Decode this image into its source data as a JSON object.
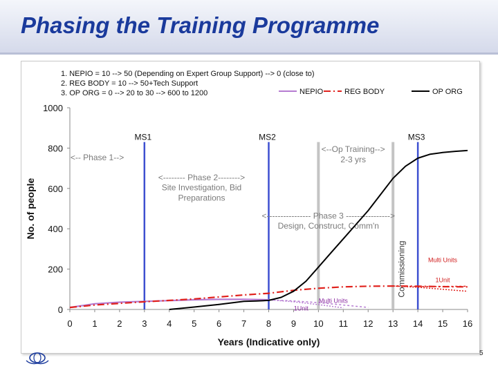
{
  "slide": {
    "title": "Phasing the Training Programme",
    "page_number": "5"
  },
  "colors": {
    "title": "#1a3a9c",
    "nepio": "#b57bd1",
    "reg_body": "#e0201b",
    "op_org": "#000000",
    "milestone": "#3d4fd0",
    "grey_marker": "#c4c4c4",
    "annot_text": "#7a7a7a",
    "multi_units_red": "#d01c1c",
    "multi_units_purple": "#8a2aa0"
  },
  "chart_data": {
    "type": "line",
    "title": "",
    "xlabel": "Years (Indicative only)",
    "ylabel": "No. of people",
    "xlim": [
      0,
      16
    ],
    "ylim": [
      0,
      1000
    ],
    "xticks": [
      "0",
      "1",
      "2",
      "3",
      "4",
      "5",
      "6",
      "7",
      "8",
      "9",
      "10",
      "11",
      "12",
      "13",
      "14",
      "15",
      "16"
    ],
    "yticks": [
      "0",
      "200",
      "400",
      "600",
      "800",
      "1000"
    ],
    "notes": [
      "1. NEPIO = 10 --> 50 (Depending on Expert Group Support) --> 0 (close to)",
      "2. REG BODY = 10 --> 50+Tech Support",
      "3. OP ORG = 0 --> 20 to 30 --> 600 to 1200"
    ],
    "legend": [
      "NEPIO",
      "REG BODY",
      "OP ORG"
    ],
    "series": [
      {
        "name": "NEPIO",
        "style": "solid",
        "x": [
          0,
          1,
          2,
          3,
          4,
          5,
          6,
          7,
          8
        ],
        "y": [
          10,
          28,
          36,
          40,
          44,
          48,
          50,
          50,
          48
        ]
      },
      {
        "name": "REG BODY",
        "style": "dashdot",
        "x": [
          0,
          1,
          2,
          3,
          4,
          5,
          6,
          7,
          8,
          9,
          10,
          11,
          12,
          13,
          14,
          15,
          16
        ],
        "y": [
          10,
          22,
          30,
          38,
          45,
          52,
          62,
          72,
          80,
          95,
          105,
          112,
          115,
          116,
          115,
          113,
          112
        ]
      },
      {
        "name": "OP ORG",
        "style": "solid",
        "x": [
          4,
          5,
          6,
          7,
          7.5,
          8,
          8.5,
          9,
          9.5,
          10,
          10.5,
          11,
          11.5,
          12,
          12.5,
          13,
          13.5,
          14,
          14.5,
          15,
          15.5,
          16
        ],
        "y": [
          0,
          12,
          25,
          40,
          42,
          45,
          60,
          90,
          140,
          210,
          280,
          350,
          420,
          490,
          570,
          650,
          710,
          750,
          770,
          778,
          784,
          788
        ]
      }
    ],
    "extra_lines": [
      {
        "name": "NEPIO 1Unit",
        "x": [
          8,
          9,
          10,
          11
        ],
        "y": [
          48,
          38,
          24,
          8
        ]
      },
      {
        "name": "NEPIO Multi Units",
        "x": [
          8,
          9,
          10,
          11,
          12
        ],
        "y": [
          48,
          42,
          34,
          22,
          10
        ]
      },
      {
        "name": "REG BODY 1Unit",
        "x": [
          13,
          14,
          15,
          16
        ],
        "y": [
          116,
          110,
          100,
          90
        ]
      },
      {
        "name": "REG BODY Multi Units",
        "x": [
          13,
          14,
          15,
          16
        ],
        "y": [
          116,
          114,
          114,
          115
        ]
      }
    ],
    "milestones": [
      {
        "label": "MS1",
        "x": 3
      },
      {
        "label": "MS2",
        "x": 8
      },
      {
        "label": "MS3",
        "x": 14
      }
    ],
    "grey_markers": [
      10,
      13
    ],
    "annotations": [
      {
        "id": "phase1",
        "text": "<-- Phase 1-->",
        "x": 1.1,
        "y": 740,
        "anchor": "middle"
      },
      {
        "id": "phase2a",
        "text": "<-------- Phase 2-------->",
        "x": 5.3,
        "y": 640,
        "anchor": "middle"
      },
      {
        "id": "phase2b",
        "text": "Site Investigation, Bid",
        "x": 5.3,
        "y": 590,
        "anchor": "middle"
      },
      {
        "id": "phase2c",
        "text": "Preparations",
        "x": 5.3,
        "y": 540,
        "anchor": "middle"
      },
      {
        "id": "optr1",
        "text": "<--Op Training-->",
        "x": 11.4,
        "y": 780,
        "anchor": "middle"
      },
      {
        "id": "optr2",
        "text": "2-3 yrs",
        "x": 11.4,
        "y": 730,
        "anchor": "middle"
      },
      {
        "id": "phase3a",
        "text": "<---------------- Phase 3 ---------------->",
        "x": 10.4,
        "y": 450,
        "anchor": "middle"
      },
      {
        "id": "phase3b",
        "text": "Design, Construct, Comm'n",
        "x": 10.4,
        "y": 400,
        "anchor": "middle"
      }
    ],
    "commissioning_label": "Commissioning",
    "small_labels": [
      {
        "id": "mu_red",
        "text": "Multi Units",
        "x": 15,
        "y": 235,
        "color": "multi_units_red",
        "size": 9
      },
      {
        "id": "u1_red",
        "text": "1Unit",
        "x": 15,
        "y": 135,
        "color": "multi_units_red",
        "size": 9
      },
      {
        "id": "mu_purple",
        "text": "Multi Units",
        "x": 10.6,
        "y": 32,
        "color": "multi_units_purple",
        "size": 9
      },
      {
        "id": "u1_purple",
        "text": "1Unit",
        "x": 9.3,
        "y": -5,
        "color": "multi_units_purple",
        "size": 9
      }
    ]
  }
}
